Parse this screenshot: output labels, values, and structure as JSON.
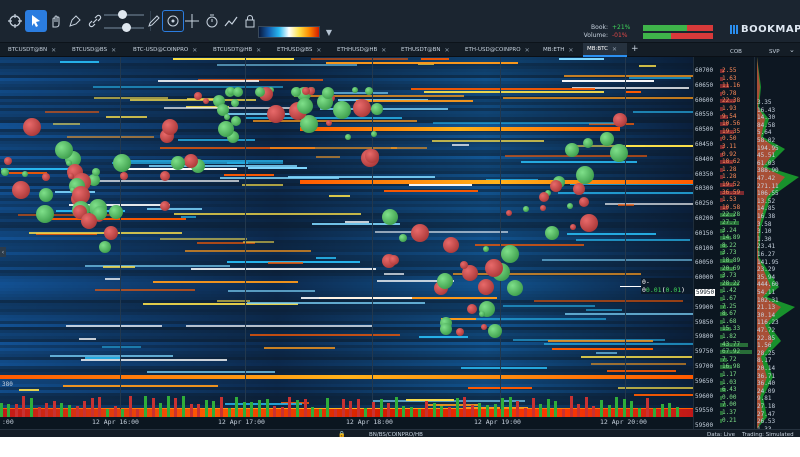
{
  "toolbar": {
    "icons": [
      "crosshair-icon",
      "pointer-icon",
      "hand-icon",
      "pen-tool-icon",
      "link-icon",
      "sliders-icon",
      "pencil-icon",
      "move-icon",
      "target-icon",
      "timer-icon",
      "line-chart-icon",
      "lock-icon"
    ],
    "heatmap_palette": [
      "#0a1a3c",
      "#1460b0",
      "#28b8f0",
      "#ffffff",
      "#ffe34a",
      "#ff8c00",
      "#d41c00"
    ],
    "book_label": "Book:",
    "volume_label": "Volume:",
    "book_value": "+21%",
    "volume_value": "-01%",
    "logo_text": "BOOKMAP"
  },
  "tabs": [
    {
      "label": "BTCUSDT@BN",
      "active": false
    },
    {
      "label": "BTCUSD@BS",
      "active": false
    },
    {
      "label": "BTC-USD@COINPRO",
      "active": false
    },
    {
      "label": "BTCUSDT@HB",
      "active": false
    },
    {
      "label": "ETHUSD@BS",
      "active": false
    },
    {
      "label": "ETHHUSD@HB",
      "active": false
    },
    {
      "label": "ETHUSDT@BN",
      "active": false
    },
    {
      "label": "ETH-USD@COINPRO",
      "active": false
    },
    {
      "label": "MB:ETH",
      "active": false
    },
    {
      "label": "MB:BTC",
      "active": true
    }
  ],
  "chart": {
    "current_price": "59950",
    "current_price_label": "0.01",
    "current_price_label_change": "0.01",
    "left_axis_value": "380",
    "x_labels": [
      ":00",
      "12 Apr 16:00",
      "12 Apr 17:00",
      "12 Apr 18:00",
      "12 Apr 19:00",
      "12 Apr 20:00"
    ]
  },
  "price_axis": [
    "60700",
    "60650",
    "60600",
    "60550",
    "60500",
    "60450",
    "60400",
    "60350",
    "60300",
    "60250",
    "60200",
    "60150",
    "60100",
    "60050",
    "60000",
    "59950",
    "59900",
    "59850",
    "59800",
    "59750",
    "59700",
    "59650",
    "59600",
    "59550",
    "59500"
  ],
  "cob": {
    "header": "COB",
    "values": [
      "2.55",
      "1.63",
      "11.16",
      "0.78",
      "22.38",
      "1.93",
      "9.54",
      "10.56",
      "19.35",
      "0.50",
      "3.11",
      "0.92",
      "18.62",
      "1.28",
      "1.28",
      "19.52",
      "36.59",
      "1.53",
      "10.58",
      "22.28",
      "27.7",
      "3.24",
      "14.89",
      "8.22",
      "3.73",
      "18.89",
      "20.69",
      "3.73",
      "28.22",
      "1.42",
      "1.67",
      "7.25",
      "8.67",
      "1.68",
      "15.33",
      "1.82",
      "43.77",
      "67.92",
      "7.72",
      "16.98",
      "1.17",
      "1.03",
      "6.43",
      "0.00",
      "7.00",
      "1.37",
      "0.21"
    ]
  },
  "svp": {
    "header": "SVP",
    "values": [
      "3.35",
      "16.43",
      "14.30",
      "84.58",
      "5.64",
      "58.02",
      "194.95",
      "45.51",
      "61.03",
      "388.90",
      "47.42",
      "271.11",
      "106.55",
      "13.52",
      "14.85",
      "16.38",
      "3.58",
      "3.10",
      "1.30",
      "23.41",
      "16.27",
      "141.95",
      "23.29",
      "35.94",
      "444.60",
      "54.11",
      "102.31",
      "21.13",
      "30.14",
      "116.23",
      "47.72",
      "22.85",
      "1.56",
      "28.25",
      "8.17",
      "20.14",
      "36.71",
      "36.40",
      "24.09",
      "9.81",
      "27.18",
      "27.47",
      "26.53",
      "1.33"
    ]
  },
  "status": {
    "feed": "BN/BS/COINPRO/HB",
    "data": "Data: Live",
    "trading": "Trading: Simulated"
  }
}
